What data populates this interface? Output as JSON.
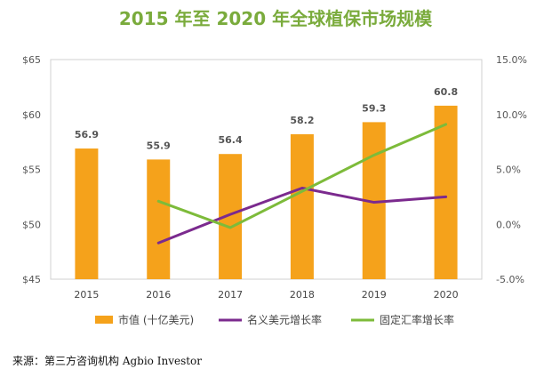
{
  "chart_data": {
    "type": "bar",
    "title": "2015 年至 2020 年全球植保市场规模",
    "categories": [
      "2015",
      "2016",
      "2017",
      "2018",
      "2019",
      "2020"
    ],
    "series": [
      {
        "name": "市值 (十亿美元)",
        "kind": "bar",
        "axis": "left",
        "color": "#f5a21b",
        "values": [
          56.9,
          55.9,
          56.4,
          58.2,
          59.3,
          60.8
        ]
      },
      {
        "name": "名义美元增长率",
        "kind": "line",
        "axis": "right",
        "color": "#7b2a8e",
        "values": [
          null,
          -1.7,
          0.9,
          3.3,
          2.0,
          2.5
        ]
      },
      {
        "name": "固定汇率增长率",
        "kind": "line",
        "axis": "right",
        "color": "#7dbb3a",
        "values": [
          null,
          2.1,
          -0.3,
          3.0,
          6.3,
          9.1
        ]
      }
    ],
    "y_left": {
      "min": 45,
      "max": 65,
      "ticks": [
        "$45",
        "$50",
        "$55",
        "$60",
        "$65"
      ]
    },
    "y_right": {
      "min": -5,
      "max": 15,
      "ticks": [
        "-5.0%",
        "0.0%",
        "5.0%",
        "10.0%",
        "15.0%"
      ]
    },
    "legend_position": "bottom",
    "grid": false
  },
  "source_note": "来源：第三方咨询机构 Agbio Investor"
}
